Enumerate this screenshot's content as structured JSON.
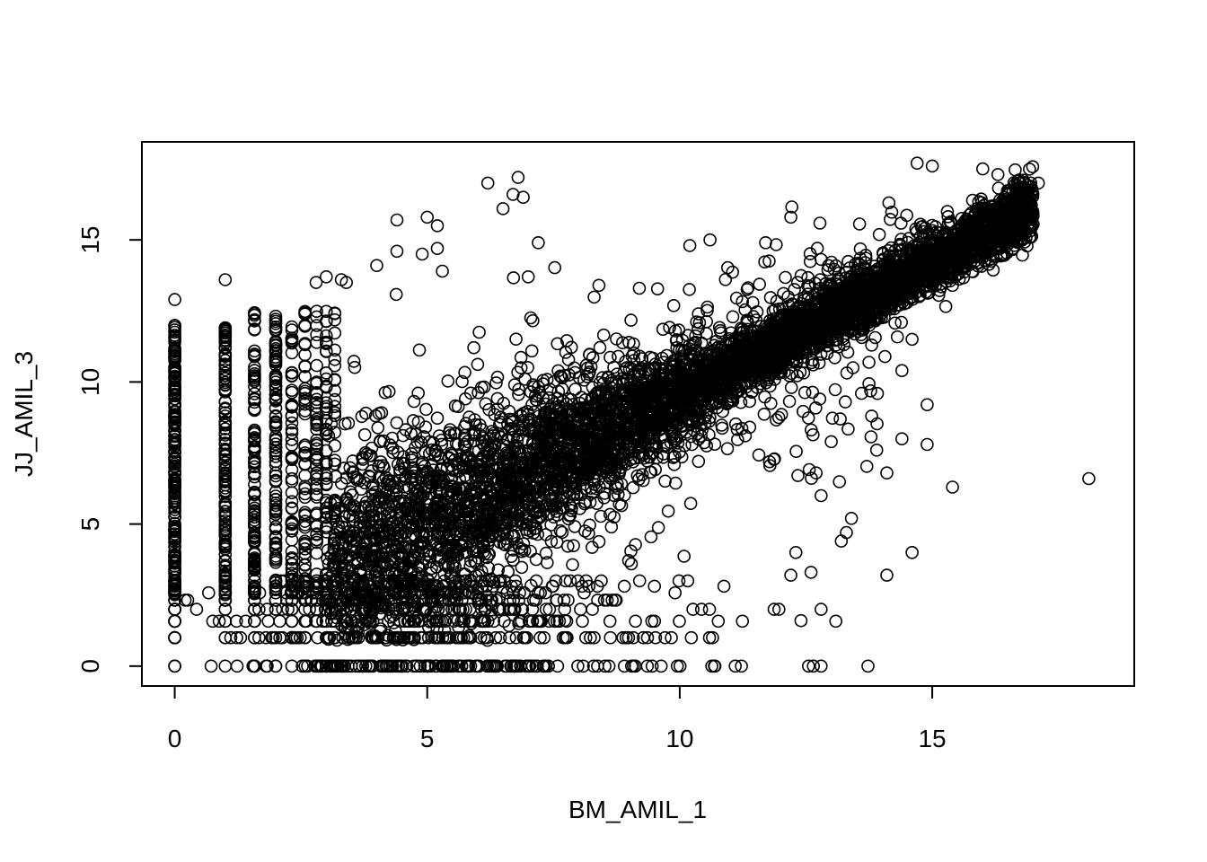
{
  "chart_data": {
    "type": "scatter",
    "title": "",
    "xlabel": "BM_AMIL_1",
    "ylabel": "JJ_AMIL_3",
    "xlim": [
      -0.65,
      19.0
    ],
    "ylim": [
      -0.7,
      18.45
    ],
    "x_ticks": [
      0,
      5,
      10,
      15
    ],
    "y_ticks": [
      0,
      5,
      10,
      15
    ],
    "x_tick_labels": [
      "0",
      "5",
      "10",
      "15"
    ],
    "y_tick_labels": [
      "0",
      "5",
      "10",
      "15"
    ],
    "grid": false,
    "legend": "none",
    "marker": "open-circle",
    "marker_color": "#000000",
    "discrete_x_levels": [
      0,
      1,
      1.58,
      2,
      2.32,
      2.58,
      2.81,
      3.0,
      3.17
    ],
    "discrete_y_levels": [
      0,
      1,
      1.58,
      2,
      2.32,
      2.58,
      2.81,
      3.0
    ],
    "main_trend": {
      "slope": 0.93,
      "intercept": 0.3,
      "x_range": [
        3.0,
        17.0
      ]
    },
    "outliers": [
      {
        "x": 6.2,
        "y": 17.0
      },
      {
        "x": 6.8,
        "y": 17.2
      },
      {
        "x": 6.5,
        "y": 16.1
      },
      {
        "x": 6.7,
        "y": 16.6
      },
      {
        "x": 6.9,
        "y": 16.5
      },
      {
        "x": 4.4,
        "y": 15.7
      },
      {
        "x": 5.0,
        "y": 15.8
      },
      {
        "x": 5.2,
        "y": 15.5
      },
      {
        "x": 7.2,
        "y": 14.9
      },
      {
        "x": 18.1,
        "y": 6.6
      },
      {
        "x": 15.4,
        "y": 6.3
      },
      {
        "x": 14.9,
        "y": 9.2
      },
      {
        "x": 14.9,
        "y": 7.8
      },
      {
        "x": 14.4,
        "y": 8.0
      },
      {
        "x": 14.1,
        "y": 6.8
      },
      {
        "x": 14.1,
        "y": 3.2
      },
      {
        "x": 14.6,
        "y": 4.0
      },
      {
        "x": 13.4,
        "y": 5.2
      },
      {
        "x": 13.2,
        "y": 4.4
      },
      {
        "x": 13.3,
        "y": 4.7
      },
      {
        "x": 12.8,
        "y": 2.0
      },
      {
        "x": 12.8,
        "y": 0.0
      },
      {
        "x": 12.4,
        "y": 1.6
      },
      {
        "x": 12.6,
        "y": 3.3
      },
      {
        "x": 12.2,
        "y": 3.2
      },
      {
        "x": 12.3,
        "y": 4.0
      },
      {
        "x": 13.0,
        "y": 7.9
      },
      {
        "x": 12.8,
        "y": 6.0
      },
      {
        "x": 12.7,
        "y": 6.8
      },
      {
        "x": 13.6,
        "y": 9.6
      },
      {
        "x": 13.8,
        "y": 8.8
      },
      {
        "x": 13.9,
        "y": 7.6
      },
      {
        "x": 13.8,
        "y": 11.3
      },
      {
        "x": 14.4,
        "y": 10.4
      },
      {
        "x": 14.6,
        "y": 11.5
      },
      {
        "x": 16.3,
        "y": 17.3
      },
      {
        "x": 16.8,
        "y": 17.1
      },
      {
        "x": 17.1,
        "y": 17.0
      },
      {
        "x": 14.7,
        "y": 17.7
      },
      {
        "x": 15.0,
        "y": 17.6
      },
      {
        "x": 16.0,
        "y": 17.5
      },
      {
        "x": 16.6,
        "y": 16.7
      },
      {
        "x": 15.3,
        "y": 16.0
      },
      {
        "x": 16.4,
        "y": 15.2
      },
      {
        "x": 15.4,
        "y": 13.4
      },
      {
        "x": 3.4,
        "y": 13.5
      },
      {
        "x": 3.0,
        "y": 13.7
      },
      {
        "x": 3.3,
        "y": 13.6
      },
      {
        "x": 2.8,
        "y": 13.5
      },
      {
        "x": 4.0,
        "y": 14.1
      },
      {
        "x": 4.9,
        "y": 14.5
      },
      {
        "x": 5.2,
        "y": 14.7
      },
      {
        "x": 5.3,
        "y": 13.9
      },
      {
        "x": 4.4,
        "y": 14.6
      },
      {
        "x": 1.0,
        "y": 13.6
      },
      {
        "x": 0.0,
        "y": 12.9
      },
      {
        "x": 7.0,
        "y": 13.7
      },
      {
        "x": 8.4,
        "y": 13.4
      },
      {
        "x": 9.2,
        "y": 13.3
      },
      {
        "x": 10.2,
        "y": 14.8
      },
      {
        "x": 10.6,
        "y": 15.0
      },
      {
        "x": 12.2,
        "y": 15.8
      },
      {
        "x": 11.7,
        "y": 14.9
      }
    ]
  }
}
